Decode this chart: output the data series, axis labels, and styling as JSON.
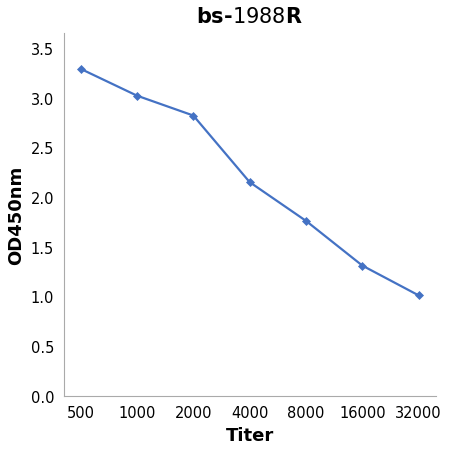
{
  "xlabel": "Titer",
  "ylabel": "OD450nm",
  "x_labels": [
    "500",
    "1000",
    "2000",
    "4000",
    "8000",
    "16000",
    "32000"
  ],
  "y_values": [
    3.29,
    3.02,
    2.82,
    2.15,
    1.76,
    1.31,
    1.01
  ],
  "y_ticks": [
    0,
    0.5,
    1.0,
    1.5,
    2.0,
    2.5,
    3.0,
    3.5
  ],
  "ylim": [
    0,
    3.65
  ],
  "line_color": "#4472C4",
  "marker": "D",
  "marker_size": 4,
  "line_width": 1.6,
  "bg_color": "#ffffff",
  "title_fontsize": 15,
  "axis_label_fontsize": 13,
  "tick_fontsize": 10.5
}
